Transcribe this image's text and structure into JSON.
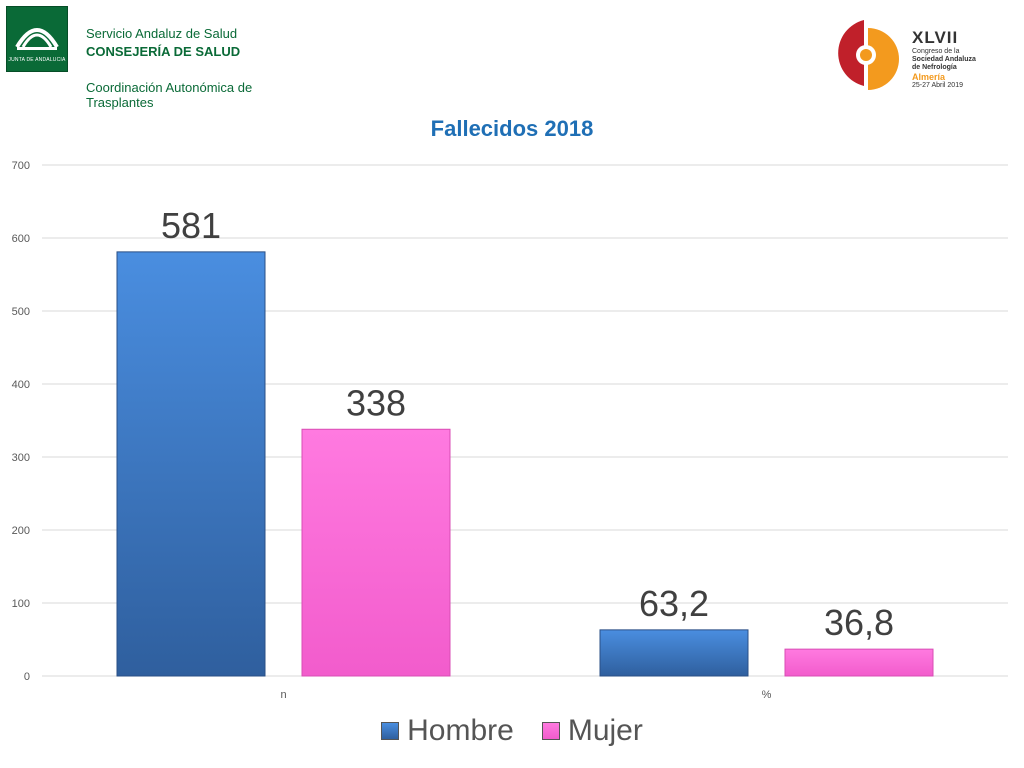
{
  "header": {
    "junta_text": "JUNTA DE ANDALUCIA",
    "org_line1": "Servicio Andaluz de Salud",
    "org_line2": "CONSEJERÍA DE SALUD",
    "org_line3": "Coordinación Autonómica de Trasplantes"
  },
  "congress": {
    "roman": "XLVII",
    "line1": "Congreso de la",
    "line2": "Sociedad Andaluza",
    "line3": "de Nefrología",
    "city": "Almería",
    "dates": "25-27 Abril 2019"
  },
  "chart_data": {
    "type": "bar",
    "title": "Fallecidos 2018",
    "categories": [
      "n",
      "%"
    ],
    "series": [
      {
        "name": "Hombre",
        "values": [
          581,
          63.2
        ],
        "labels": [
          "581",
          "63,2"
        ],
        "color": "#3a78c4"
      },
      {
        "name": "Mujer",
        "values": [
          338,
          36.8
        ],
        "labels": [
          "338",
          "36,8"
        ],
        "color": "#ff6fd6"
      }
    ],
    "ylim": [
      0,
      700
    ],
    "yticks": [
      0,
      100,
      200,
      300,
      400,
      500,
      600,
      700
    ],
    "grid": true,
    "legend": "bottom",
    "xlabel": "",
    "ylabel": ""
  }
}
